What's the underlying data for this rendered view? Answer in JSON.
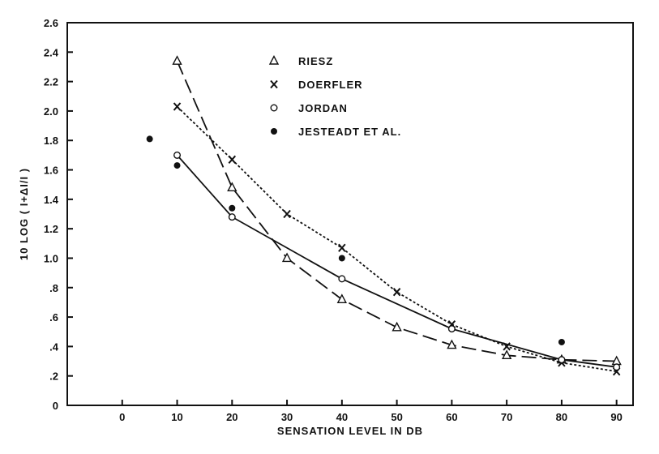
{
  "chart_data": {
    "type": "line",
    "title": "",
    "xlabel": "SENSATION LEVEL IN DB",
    "ylabel": "10 LOG ( I+ΔI/I )",
    "xlim": [
      -10,
      93
    ],
    "ylim": [
      0,
      2.6
    ],
    "x_ticks": [
      0,
      10,
      20,
      30,
      40,
      50,
      60,
      70,
      80,
      90
    ],
    "x_tick_labels": [
      "0",
      "10",
      "20",
      "30",
      "40",
      "50",
      "60",
      "70",
      "80",
      "90"
    ],
    "y_ticks": [
      0,
      0.2,
      0.4,
      0.6,
      0.8,
      1.0,
      1.2,
      1.4,
      1.6,
      1.8,
      2.0,
      2.2,
      2.4,
      2.6
    ],
    "y_tick_labels": [
      "0",
      ".2",
      ".4",
      ".6",
      ".8",
      "1.0",
      "1.2",
      "1.4",
      "1.6",
      "1.8",
      "2.0",
      "2.2",
      "2.4",
      "2.6"
    ],
    "grid": false,
    "legend_position": "top-center",
    "series": [
      {
        "name": "RIESZ",
        "marker": "triangle",
        "line_style": "long-dash",
        "x": [
          10,
          20,
          30,
          40,
          50,
          60,
          70,
          80,
          90
        ],
        "y": [
          2.34,
          1.48,
          1.0,
          0.72,
          0.53,
          0.41,
          0.34,
          0.31,
          0.3
        ]
      },
      {
        "name": "DOERFLER",
        "marker": "x",
        "line_style": "dotted",
        "x": [
          10,
          20,
          30,
          40,
          50,
          60,
          70,
          80,
          90
        ],
        "y": [
          2.03,
          1.67,
          1.3,
          1.07,
          0.77,
          0.55,
          0.4,
          0.29,
          0.23
        ]
      },
      {
        "name": "JORDAN",
        "marker": "open-circle",
        "line_style": "solid",
        "x": [
          10,
          20,
          40,
          60,
          80,
          90
        ],
        "y": [
          1.7,
          1.28,
          0.86,
          0.52,
          0.31,
          0.26
        ]
      },
      {
        "name": "JESTEADT ET AL.",
        "marker": "filled-circle",
        "line_style": "none",
        "x": [
          5,
          10,
          20,
          40,
          80
        ],
        "y": [
          1.81,
          1.63,
          1.34,
          1.0,
          0.43
        ]
      }
    ]
  }
}
